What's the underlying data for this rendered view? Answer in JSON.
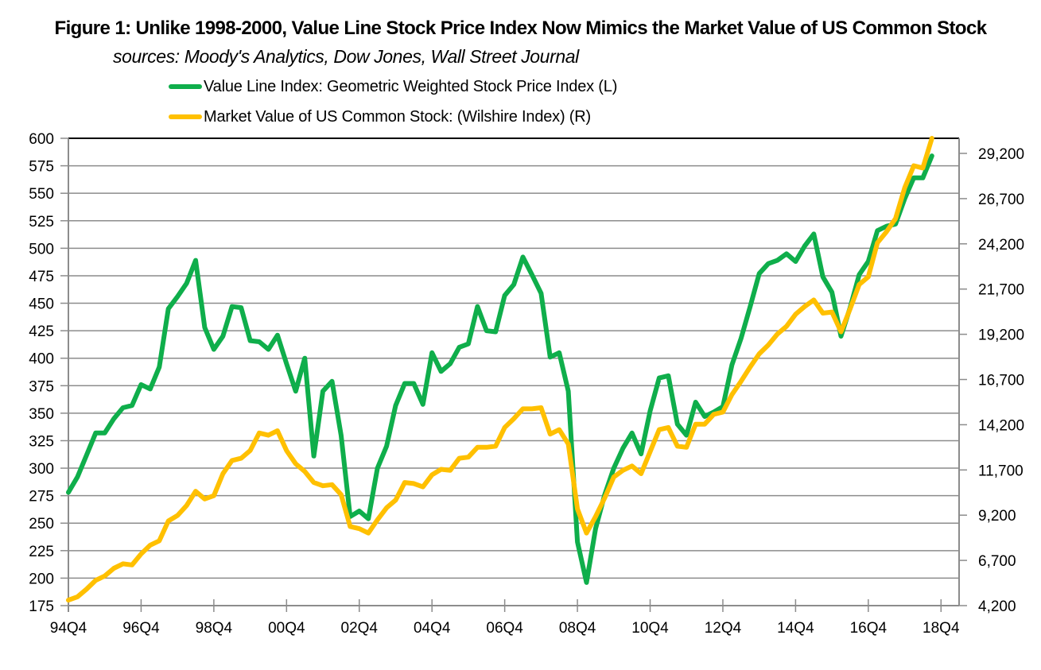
{
  "chart_data": {
    "type": "line",
    "title": "Figure 1: Unlike 1998-2000,  Value Line Stock Price Index Now Mimics the Market Value of US Common Stock",
    "subtitle": "sources: Moody's Analytics, Dow Jones, Wall Street Journal",
    "xlabel": "",
    "ylabel": "",
    "y2label": "",
    "x_tick_labels": [
      "94Q4",
      "96Q4",
      "98Q4",
      "00Q4",
      "02Q4",
      "04Q4",
      "06Q4",
      "08Q4",
      "10Q4",
      "12Q4",
      "14Q4",
      "16Q4",
      "18Q4"
    ],
    "y_tick_labels": [
      "175",
      "200",
      "225",
      "250",
      "275",
      "300",
      "325",
      "350",
      "375",
      "400",
      "425",
      "450",
      "475",
      "500",
      "525",
      "550",
      "575",
      "600"
    ],
    "y2_tick_labels": [
      "4,200",
      "6,700",
      "9,200",
      "11,700",
      "14,200",
      "16,700",
      "19,200",
      "21,700",
      "24,200",
      "26,700",
      "29,200"
    ],
    "ylim": [
      175,
      600
    ],
    "y2lim": [
      4200,
      30035
    ],
    "grid": true,
    "legend_position": "top",
    "x_start": "94Q4",
    "x_end": "18Q4",
    "frequency": "quarterly",
    "series": [
      {
        "name": "Value Line Index: Geometric Weighted Stock Price Index (L)",
        "axis": "left",
        "color": "#0fae4b",
        "values": [
          278,
          292,
          312,
          332,
          332,
          345,
          355,
          357,
          376,
          372,
          392,
          445,
          456,
          468,
          489,
          428,
          408,
          420,
          447,
          446,
          416,
          415,
          408,
          421,
          395,
          370,
          400,
          311,
          370,
          379,
          330,
          256,
          261,
          254,
          300,
          320,
          357,
          377,
          377,
          358,
          405,
          388,
          395,
          410,
          413,
          447,
          425,
          424,
          457,
          467,
          492,
          476,
          459,
          401,
          405,
          370,
          233,
          196,
          245,
          276,
          300,
          318,
          332,
          313,
          352,
          382,
          384,
          340,
          330,
          360,
          347,
          351,
          356,
          394,
          418,
          447,
          477,
          486,
          489,
          495,
          488,
          502,
          513,
          474,
          460,
          420,
          446,
          476,
          488,
          516,
          520,
          522,
          545,
          564,
          564,
          584
        ]
      },
      {
        "name": "Market Value of US Common Stock: (Wilshire Index) (R)",
        "axis": "right",
        "color": "#ffc000",
        "values": [
          4504,
          4686,
          5112,
          5598,
          5841,
          6266,
          6510,
          6449,
          7057,
          7543,
          7786,
          8880,
          9184,
          9731,
          10521,
          10096,
          10278,
          11494,
          12224,
          12345,
          12771,
          13743,
          13622,
          13865,
          12771,
          12041,
          11616,
          11008,
          10825,
          10886,
          10339,
          8576,
          8454,
          8211,
          8941,
          9610,
          10035,
          11008,
          10947,
          10764,
          11433,
          11737,
          11677,
          12345,
          12406,
          12953,
          12953,
          13014,
          14047,
          14534,
          15081,
          15081,
          15142,
          13683,
          13926,
          13136,
          9549,
          8211,
          9123,
          10156,
          11311,
          11676,
          11919,
          11494,
          12710,
          13926,
          14047,
          13014,
          12953,
          14230,
          14230,
          14777,
          14899,
          15871,
          16601,
          17391,
          18120,
          18607,
          19215,
          19640,
          20309,
          20734,
          21099,
          20370,
          20430,
          19336,
          20612,
          21950,
          22375,
          24259,
          24867,
          25597,
          27299,
          28515,
          28393,
          30035
        ]
      }
    ]
  }
}
